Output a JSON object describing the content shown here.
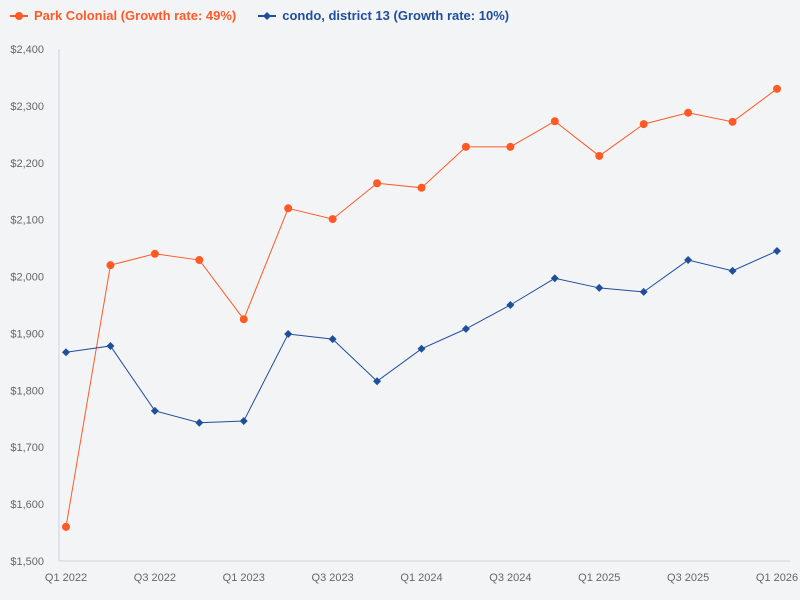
{
  "chart_data": {
    "type": "line",
    "title": "",
    "xlabel": "",
    "ylabel": "",
    "ylim": [
      1500,
      2400
    ],
    "yticks": [
      "$1,500",
      "$1,600",
      "$1,700",
      "$1,800",
      "$1,900",
      "$2,000",
      "$2,100",
      "$2,200",
      "$2,300",
      "$2,400"
    ],
    "ytick_values": [
      1500,
      1600,
      1700,
      1800,
      1900,
      2000,
      2100,
      2200,
      2300,
      2400
    ],
    "x": [
      "Q1 2022",
      "Q2 2022",
      "Q3 2022",
      "Q4 2022",
      "Q1 2023",
      "Q2 2023",
      "Q3 2023",
      "Q4 2023",
      "Q1 2024",
      "Q2 2024",
      "Q3 2024",
      "Q4 2024",
      "Q1 2025",
      "Q2 2025",
      "Q3 2025",
      "Q4 2025",
      "Q1 2026"
    ],
    "xtick_labels": [
      "Q1 2022",
      "Q3 2022",
      "Q1 2023",
      "Q3 2023",
      "Q1 2024",
      "Q3 2024",
      "Q1 2025",
      "Q3 2025",
      "Q1 2026"
    ],
    "grid": false,
    "legend_position": "top-left",
    "series": [
      {
        "name": "Park Colonial (Growth rate: 49%)",
        "color": "#ff5a26",
        "marker": "circle",
        "values": [
          1560,
          2020,
          2040,
          2029,
          1925,
          2120,
          2101,
          2164,
          2156,
          2228,
          2228,
          2273,
          2212,
          2268,
          2288,
          2272,
          2330
        ]
      },
      {
        "name": "condo, district 13 (Growth rate: 10%)",
        "color": "#1f4e9c",
        "marker": "diamond",
        "values": [
          1867,
          1878,
          1764,
          1743,
          1746,
          1899,
          1890,
          1816,
          1873,
          1908,
          1950,
          1997,
          1980,
          1973,
          2029,
          2010,
          2045
        ]
      }
    ]
  }
}
